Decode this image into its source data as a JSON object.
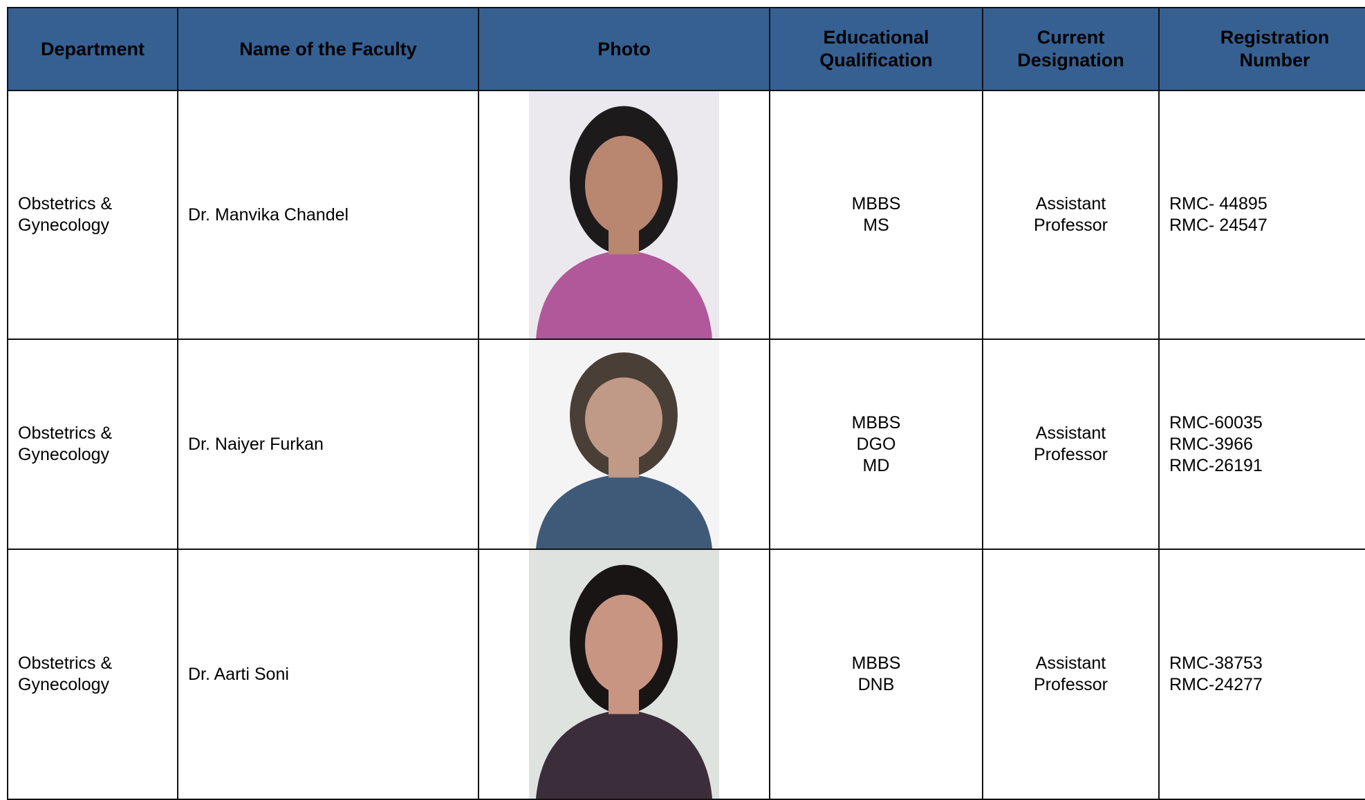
{
  "table": {
    "headers": [
      "Department",
      "Name of the Faculty",
      "Photo",
      "Educational Qualification",
      "Current Designation",
      "Registration Number"
    ],
    "rows": [
      {
        "department": "Obstetrics & Gynecology",
        "name": "Dr. Manvika Chandel",
        "qualification": [
          "MBBS",
          "MS"
        ],
        "designation": "Assistant Professor",
        "registration": [
          "RMC- 44895",
          "RMC- 24547"
        ]
      },
      {
        "department": "Obstetrics & Gynecology",
        "name": "Dr. Naiyer Furkan",
        "qualification": [
          "MBBS",
          "DGO",
          "MD"
        ],
        "designation": "Assistant Professor",
        "registration": [
          "RMC-60035",
          "RMC-3966",
          "RMC-26191"
        ]
      },
      {
        "department": "Obstetrics & Gynecology",
        "name": "Dr. Aarti Soni",
        "qualification": [
          "MBBS",
          "DNB"
        ],
        "designation": "Assistant Professor",
        "registration": [
          "RMC-38753",
          "RMC-24277"
        ]
      }
    ]
  }
}
